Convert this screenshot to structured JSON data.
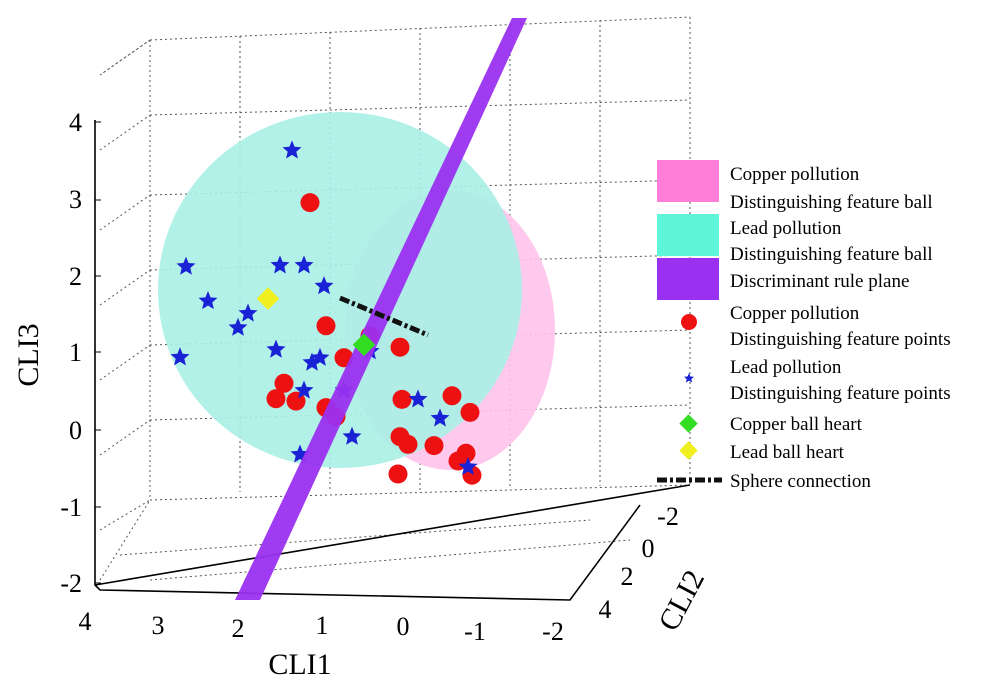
{
  "chart_data": {
    "type": "scatter",
    "axes": {
      "x": {
        "label": "CLI1",
        "ticks": [
          "4",
          "3",
          "2",
          "1",
          "0",
          "-1",
          "-2"
        ]
      },
      "y": {
        "label": "CLI2",
        "ticks": [
          "-2",
          "0",
          "2",
          "4"
        ]
      },
      "z": {
        "label": "CLI3",
        "ticks": [
          "4",
          "3",
          "2",
          "1",
          "0",
          "-1",
          "-2"
        ]
      },
      "grid": true
    },
    "legend": {
      "position": "right",
      "entries": [
        {
          "line1": "Copper pollution",
          "line2": "Distinguishing feature ball",
          "symbol": "patch",
          "color": "#ff7fd8"
        },
        {
          "line1": "Lead pollution",
          "line2": "Distinguishing feature ball",
          "symbol": "patch",
          "color": "#5ff5d9"
        },
        {
          "line1": "Discriminant rule plane",
          "line2": "",
          "symbol": "patch",
          "color": "#9a30f0"
        },
        {
          "line1": "Copper pollution",
          "line2": "Distinguishing feature points",
          "symbol": "circle",
          "color": "#ee1111"
        },
        {
          "line1": "Lead pollution",
          "line2": "Distinguishing feature points",
          "symbol": "star",
          "color": "#1a22d6"
        },
        {
          "line1": "Copper ball heart",
          "line2": "",
          "symbol": "diamond",
          "color": "#33dd22"
        },
        {
          "line1": "Lead ball heart",
          "line2": "",
          "symbol": "diamond",
          "color": "#f0f020"
        },
        {
          "line1": "Sphere connection",
          "line2": "",
          "symbol": "dashdot",
          "color": "#000000"
        }
      ]
    },
    "series": [
      {
        "name": "Copper pollution Distinguishing feature points",
        "points": [
          [
            1.2,
            0.3,
            3.0
          ],
          [
            1.0,
            0.3,
            1.4
          ],
          [
            0.5,
            0.5,
            1.3
          ],
          [
            0.2,
            0.8,
            1.2
          ],
          [
            0.8,
            0.4,
            1.0
          ],
          [
            1.6,
            0.6,
            0.7
          ],
          [
            1.7,
            0.6,
            0.5
          ],
          [
            1.5,
            0.8,
            0.5
          ],
          [
            1.1,
            0.7,
            0.4
          ],
          [
            1.0,
            0.8,
            0.3
          ],
          [
            0.3,
            1.3,
            0.6
          ],
          [
            -0.4,
            1.0,
            0.6
          ],
          [
            -0.6,
            1.1,
            0.4
          ],
          [
            0.3,
            1.2,
            0.1
          ],
          [
            0.2,
            1.2,
            0.0
          ],
          [
            -0.1,
            1.3,
            0.0
          ],
          [
            -0.5,
            1.3,
            -0.1
          ],
          [
            -0.4,
            1.3,
            -0.2
          ],
          [
            -0.6,
            1.2,
            -0.4
          ],
          [
            0.3,
            1.1,
            -0.4
          ]
        ]
      },
      {
        "name": "Lead pollution Distinguishing feature points",
        "points": [
          [
            1.3,
            -0.2,
            3.6
          ],
          [
            2.8,
            0.5,
            2.2
          ],
          [
            2.6,
            0.8,
            1.8
          ],
          [
            3.0,
            1.0,
            1.1
          ],
          [
            2.2,
            1.2,
            1.7
          ],
          [
            2.3,
            1.1,
            1.5
          ],
          [
            1.8,
            1.0,
            1.2
          ],
          [
            1.6,
            0.4,
            2.2
          ],
          [
            1.3,
            0.4,
            2.2
          ],
          [
            1.0,
            0.2,
            1.9
          ],
          [
            1.3,
            0.8,
            1.0
          ],
          [
            1.5,
            1.2,
            0.7
          ],
          [
            1.0,
            1.2,
            0.7
          ],
          [
            0.1,
            1.3,
            0.6
          ],
          [
            -0.1,
            1.6,
            0.4
          ],
          [
            1.6,
            1.4,
            -0.1
          ],
          [
            -0.4,
            1.8,
            -0.2
          ],
          [
            0.9,
            1.2,
            0.1
          ],
          [
            0.5,
            0.5,
            1.1
          ],
          [
            1.1,
            0.4,
            1.0
          ]
        ]
      },
      {
        "name": "Copper ball heart",
        "points": [
          [
            0.6,
            0.6,
            1.2
          ]
        ]
      },
      {
        "name": "Lead ball heart",
        "points": [
          [
            1.8,
            0.6,
            1.8
          ]
        ]
      }
    ]
  }
}
